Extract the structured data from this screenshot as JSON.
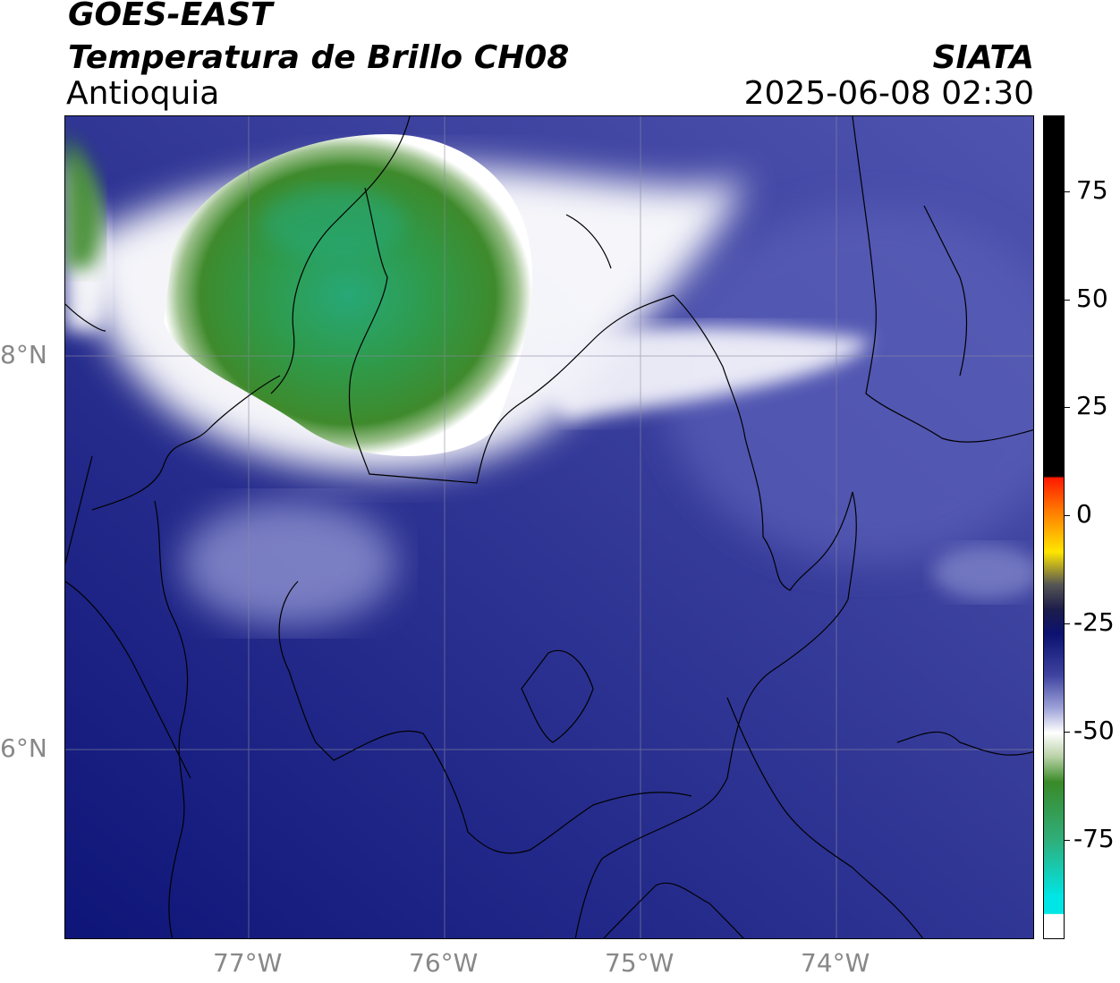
{
  "header": {
    "satellite": "GOES-EAST",
    "product": "Temperatura de Brillo CH08",
    "region": "Antioquia",
    "agency": "SIATA",
    "datetime": "2025-06-08 02:30"
  },
  "map": {
    "lon_range": [
      -77.95,
      -73.0
    ],
    "lat_range": [
      4.95,
      9.15
    ],
    "lon_ticks": [
      "77°W",
      "76°W",
      "75°W",
      "74°W"
    ],
    "lat_ticks": [
      "8°N",
      "6°N"
    ]
  },
  "colorbar": {
    "range": [
      -95,
      92
    ],
    "ticks": [
      "75",
      "50",
      "25",
      "0",
      "-25",
      "-50",
      "-75"
    ],
    "colors": {
      "cyan": "#00e6e6",
      "green_light": "#2fae7a",
      "green": "#3a8a28",
      "white": "#ffffff",
      "blue_light": "#6b70c6",
      "blue_dark": "#0b1270",
      "navy": "#1c1c4a",
      "yellow": "#ffe600",
      "orange": "#ff8a00",
      "red": "#ff1a00",
      "black": "#000000"
    }
  }
}
